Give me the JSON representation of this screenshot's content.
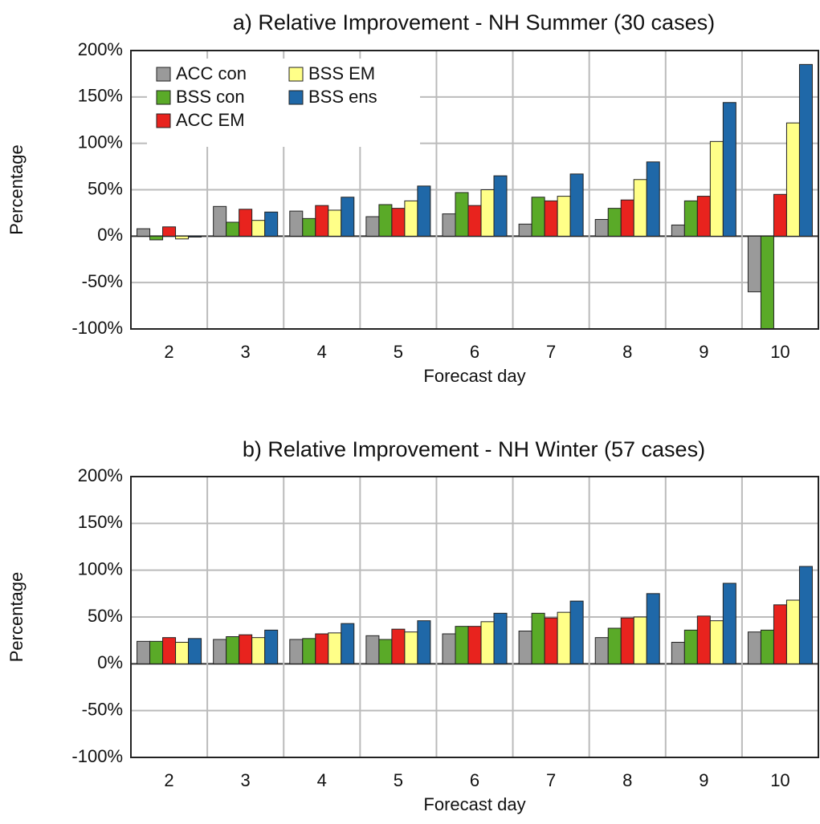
{
  "chart_data": [
    {
      "type": "bar",
      "title": "a) Relative Improvement - NH Summer (30 cases)",
      "x_label": "Forecast day",
      "y_label": "Percentage",
      "categories": [
        "2",
        "3",
        "4",
        "5",
        "6",
        "7",
        "8",
        "9",
        "10"
      ],
      "series": [
        {
          "name": "ACC con",
          "color": "#9a9a9a",
          "values": [
            8,
            32,
            27,
            21,
            24,
            13,
            18,
            12,
            -60
          ]
        },
        {
          "name": "BSS con",
          "color": "#5aaa28",
          "values": [
            -4,
            15,
            19,
            34,
            47,
            42,
            30,
            38,
            -100
          ]
        },
        {
          "name": "ACC EM",
          "color": "#e8231e",
          "values": [
            10,
            29,
            33,
            30,
            33,
            38,
            39,
            43,
            45
          ]
        },
        {
          "name": "BSS EM",
          "color": "#ffff88",
          "values": [
            -3,
            17,
            28,
            38,
            50,
            43,
            61,
            102,
            122
          ]
        },
        {
          "name": "BSS ens",
          "color": "#1f68a8",
          "values": [
            -1,
            26,
            42,
            54,
            65,
            67,
            80,
            144,
            185
          ]
        }
      ],
      "ylim": [
        -100,
        200
      ],
      "yticks": [
        {
          "value": -100,
          "label": "-100%"
        },
        {
          "value": -50,
          "label": "-50%"
        },
        {
          "value": 0,
          "label": "0%"
        },
        {
          "value": 50,
          "label": "50%"
        },
        {
          "value": 100,
          "label": "100%"
        },
        {
          "value": 150,
          "label": "150%"
        },
        {
          "value": 200,
          "label": "200%"
        }
      ],
      "grid": true,
      "legend": "upper left"
    },
    {
      "type": "bar",
      "title": "b) Relative Improvement - NH Winter (57 cases)",
      "x_label": "Forecast day",
      "y_label": "Percentage",
      "categories": [
        "2",
        "3",
        "4",
        "5",
        "6",
        "7",
        "8",
        "9",
        "10"
      ],
      "series": [
        {
          "color": "#9a9a9a",
          "values": [
            24,
            26,
            26,
            30,
            32,
            35,
            28,
            23,
            34
          ]
        },
        {
          "color": "#5aaa28",
          "values": [
            24,
            29,
            27,
            26,
            40,
            54,
            38,
            36,
            36
          ]
        },
        {
          "color": "#e8231e",
          "values": [
            28,
            31,
            32,
            37,
            40,
            49,
            49,
            51,
            63
          ]
        },
        {
          "color": "#ffff88",
          "values": [
            23,
            28,
            33,
            34,
            45,
            55,
            50,
            46,
            68
          ]
        },
        {
          "color": "#1f68a8",
          "values": [
            27,
            36,
            43,
            46,
            54,
            67,
            75,
            86,
            104
          ]
        }
      ],
      "ylim": [
        -100,
        200
      ],
      "yticks": [
        {
          "value": -100,
          "label": "-100%"
        },
        {
          "value": -50,
          "label": "-50%"
        },
        {
          "value": 0,
          "label": "0%"
        },
        {
          "value": 50,
          "label": "50%"
        },
        {
          "value": 100,
          "label": "100%"
        },
        {
          "value": 150,
          "label": "150%"
        },
        {
          "value": 200,
          "label": "200%"
        }
      ],
      "grid": true
    }
  ]
}
